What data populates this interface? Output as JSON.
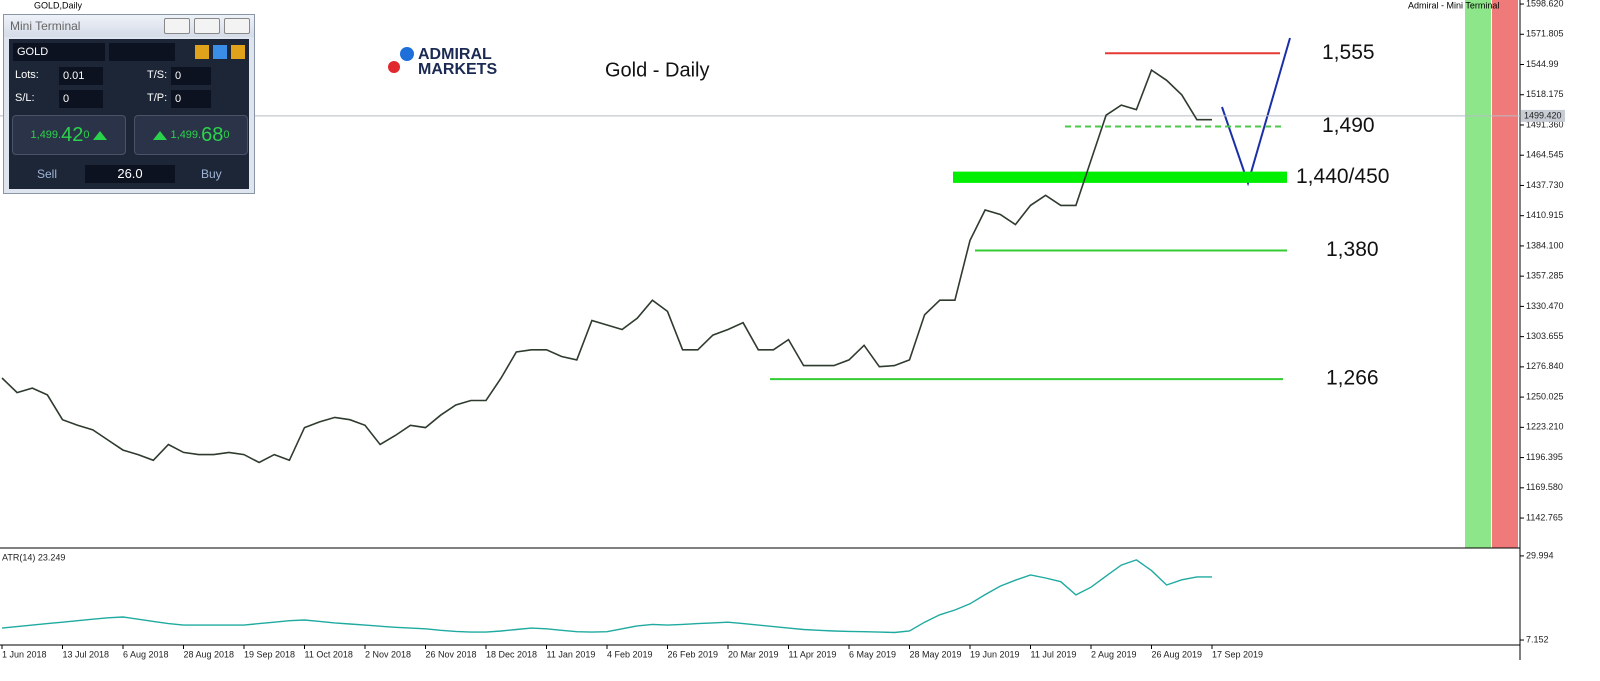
{
  "window_title": "GOLD,Daily",
  "terminal_caption": "Admiral - Mini Terminal",
  "logo": {
    "line1": "ADMIRAL",
    "line2": "MARKETS"
  },
  "mini_terminal": {
    "title": "Mini Terminal",
    "symbol": "GOLD",
    "lots_label": "Lots:",
    "lots": "0.01",
    "ts_label": "T/S:",
    "ts": "0",
    "sl_label": "S/L:",
    "sl": "0",
    "tp_label": "T/P:",
    "tp": "0",
    "sell": {
      "prefix": "1,499.",
      "big": "42",
      "small": "0",
      "label": "Sell"
    },
    "buy": {
      "prefix": "1,499.",
      "big": "68",
      "small": "0",
      "label": "Buy"
    },
    "spread": "26.0"
  },
  "chart_data": [
    {
      "type": "line",
      "title": "Gold - Daily",
      "color": "#2f3b2f",
      "categories": [
        "1 Jun 2018",
        null,
        null,
        null,
        "13 Jul 2018",
        null,
        null,
        null,
        "6 Aug 2018",
        null,
        null,
        null,
        "28 Aug 2018",
        null,
        null,
        null,
        "19 Sep 2018",
        null,
        null,
        null,
        "11 Oct 2018",
        null,
        null,
        null,
        "2 Nov 2018",
        null,
        null,
        null,
        "26 Nov 2018",
        null,
        null,
        null,
        "18 Dec 2018",
        null,
        null,
        null,
        "11 Jan 2019",
        null,
        null,
        null,
        "4 Feb 2019",
        null,
        null,
        null,
        "26 Feb 2019",
        null,
        null,
        null,
        "20 Mar 2019",
        null,
        null,
        null,
        "11 Apr 2019",
        null,
        null,
        null,
        "6 May 2019",
        null,
        null,
        null,
        "28 May 2019",
        null,
        null,
        null,
        "19 Jun 2019",
        null,
        null,
        null,
        "11 Jul 2019",
        null,
        null,
        null,
        "2 Aug 2019",
        null,
        null,
        null,
        "26 Aug 2019",
        null,
        null,
        null,
        "17 Sep 2019"
      ],
      "values": [
        1267,
        1254,
        1258,
        1252,
        1230,
        1225,
        1221,
        1212,
        1203,
        1199,
        1194,
        1208,
        1201,
        1199,
        1199,
        1201,
        1199,
        1192,
        1199,
        1194,
        1223,
        1228,
        1232,
        1230,
        1225,
        1208,
        1216,
        1225,
        1223,
        1234,
        1243,
        1247,
        1247,
        1267,
        1290,
        1292,
        1292,
        1286,
        1283,
        1318,
        1314,
        1310,
        1320,
        1336,
        1326,
        1292,
        1292,
        1305,
        1310,
        1316,
        1292,
        1292,
        1301,
        1278,
        1278,
        1278,
        1283,
        1296,
        1277,
        1278,
        1283,
        1323,
        1336,
        1336,
        1389,
        1416,
        1412,
        1403,
        1420,
        1429,
        1420,
        1420,
        1460,
        1500,
        1509,
        1505,
        1540,
        1531,
        1518,
        1496,
        1496
      ],
      "ylim": [
        1116.2,
        1602.2
      ],
      "yticks": [
        {
          "value": 1598.62,
          "label": "1598.620"
        },
        1571.805,
        1544.99,
        1518.175,
        {
          "value": 1491.36,
          "label": "1491.360"
        },
        1464.545,
        {
          "value": 1437.73,
          "label": "1437.730"
        },
        1410.915,
        {
          "value": 1384.1,
          "label": "1384.100"
        },
        1357.285,
        {
          "value": 1330.47,
          "label": "1330.470"
        },
        1303.655,
        {
          "value": 1276.84,
          "label": "1276.840"
        },
        1250.025,
        {
          "value": 1223.21,
          "label": "1223.210"
        },
        1196.395,
        {
          "value": 1169.58,
          "label": "1169.580"
        },
        1142.765
      ],
      "last_price": {
        "value": 1499.42,
        "label": "1499.420"
      },
      "levels": [
        {
          "label": "1,555",
          "value": 1555,
          "color": "#e53935",
          "style": "solid"
        },
        {
          "label": "1,490",
          "value": 1490,
          "color": "#4cc94c",
          "style": "dashed"
        },
        {
          "label": "1,440/450",
          "low": 1440,
          "high": 1450,
          "color": "#00ee00"
        },
        {
          "label": "1,380",
          "value": 1380,
          "color": "#33cc33",
          "style": "solid"
        },
        {
          "label": "1,266",
          "value": 1266,
          "color": "#33cc33",
          "style": "solid"
        }
      ]
    },
    {
      "type": "line",
      "title": "ATR(14) 23.249",
      "color": "#1faaa0",
      "values": [
        10.4,
        10.8,
        11.2,
        11.6,
        12.0,
        12.4,
        12.8,
        13.2,
        13.4,
        12.8,
        12.2,
        11.6,
        11.2,
        11.2,
        11.2,
        11.2,
        11.2,
        11.6,
        12.0,
        12.4,
        12.6,
        12.2,
        11.8,
        11.5,
        11.2,
        10.9,
        10.6,
        10.4,
        10.2,
        9.8,
        9.5,
        9.3,
        9.3,
        9.6,
        10.0,
        10.4,
        10.2,
        9.8,
        9.4,
        9.3,
        9.4,
        10.2,
        11.0,
        11.4,
        11.2,
        11.4,
        11.6,
        11.8,
        12.0,
        11.6,
        11.2,
        10.8,
        10.4,
        10.0,
        9.8,
        9.6,
        9.5,
        9.4,
        9.3,
        9.2,
        9.6,
        12.0,
        14.0,
        15.3,
        17.0,
        19.5,
        21.8,
        23.4,
        24.8,
        24.0,
        23.0,
        19.4,
        21.5,
        24.5,
        27.5,
        28.9,
        26.0,
        22.1,
        23.5,
        24.3,
        24.3
      ],
      "ylim": [
        5.8,
        31.6
      ],
      "yticks": [
        29.994,
        7.152
      ]
    }
  ]
}
